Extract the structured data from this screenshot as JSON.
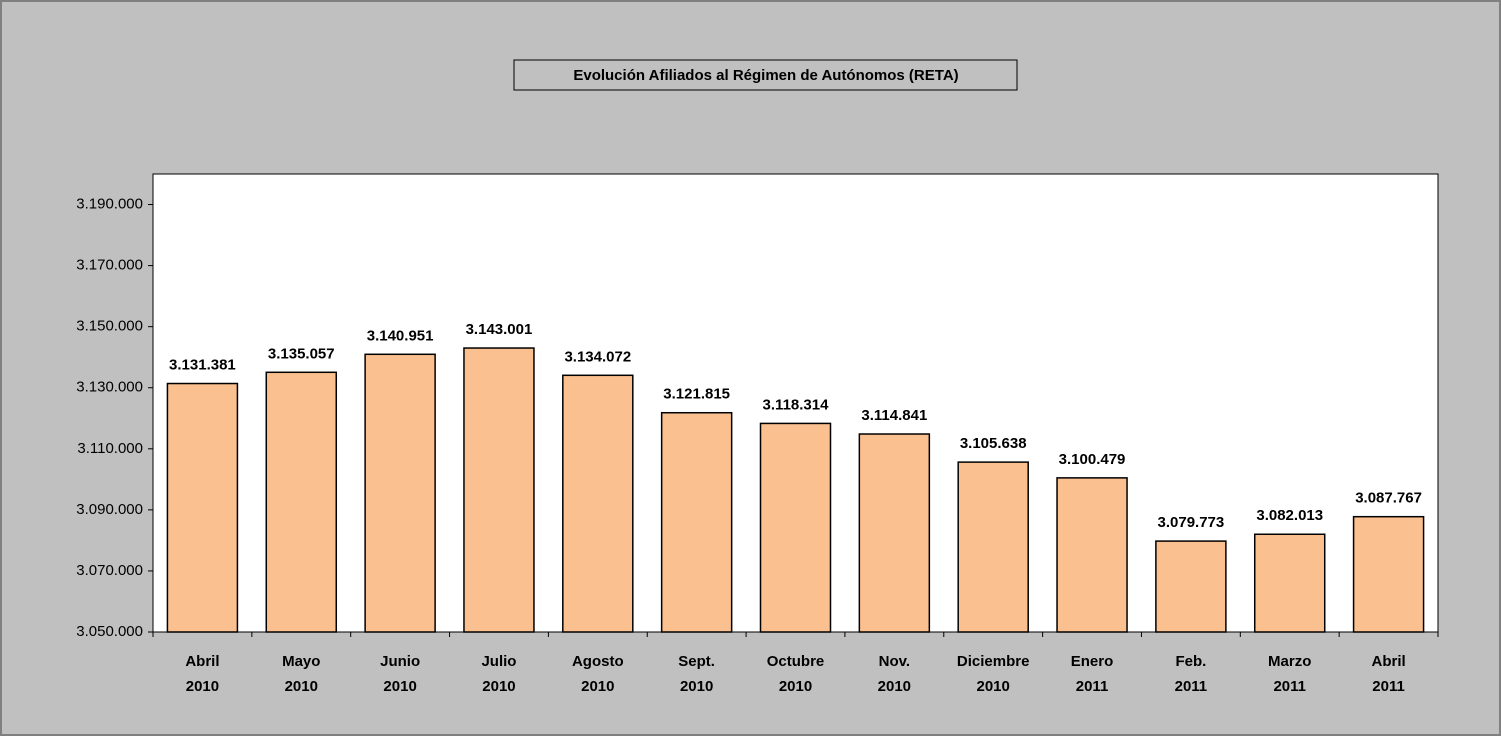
{
  "chart_data": {
    "type": "bar",
    "title": "Evolución Afiliados al Régimen de Autónomos (RETA)",
    "categories": [
      [
        "Abril",
        "2010"
      ],
      [
        "Mayo",
        "2010"
      ],
      [
        "Junio",
        "2010"
      ],
      [
        "Julio",
        "2010"
      ],
      [
        "Agosto",
        "2010"
      ],
      [
        "Sept.",
        "2010"
      ],
      [
        "Octubre",
        "2010"
      ],
      [
        "Nov.",
        "2010"
      ],
      [
        "Diciembre",
        "2010"
      ],
      [
        "Enero",
        "2011"
      ],
      [
        "Feb.",
        "2011"
      ],
      [
        "Marzo",
        "2011"
      ],
      [
        "Abril",
        "2011"
      ]
    ],
    "values": [
      3131381,
      3135057,
      3140951,
      3143001,
      3134072,
      3121815,
      3118314,
      3114841,
      3105638,
      3100479,
      3079773,
      3082013,
      3087767
    ],
    "value_labels": [
      "3.131.381",
      "3.135.057",
      "3.140.951",
      "3.143.001",
      "3.134.072",
      "3.121.815",
      "3.118.314",
      "3.114.841",
      "3.105.638",
      "3.100.479",
      "3.079.773",
      "3.082.013",
      "3.087.767"
    ],
    "color": "#fac090",
    "ylim": [
      3050000,
      3200000
    ],
    "yticks": [
      {
        "value": 3050000,
        "label": "3.050.000"
      },
      {
        "value": 3070000,
        "label": "3.070.000"
      },
      {
        "value": 3090000,
        "label": "3.090.000"
      },
      {
        "value": 3110000,
        "label": "3.110.000"
      },
      {
        "value": 3130000,
        "label": "3.130.000"
      },
      {
        "value": 3150000,
        "label": "3.150.000"
      },
      {
        "value": 3170000,
        "label": "3.170.000"
      },
      {
        "value": 3190000,
        "label": "3.190.000"
      }
    ],
    "grid": false
  }
}
